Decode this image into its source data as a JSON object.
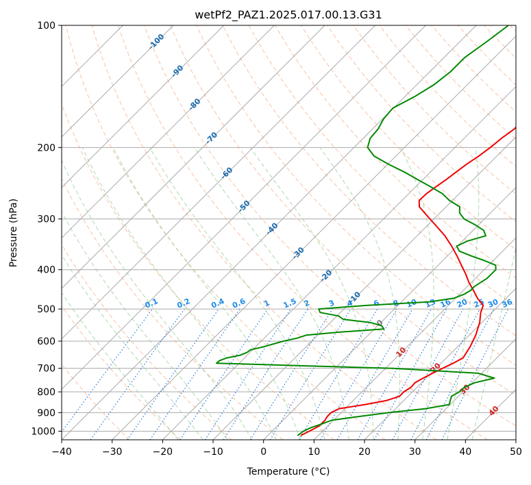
{
  "chart_data": {
    "type": "line",
    "title": "wetPf2_PAZ1.2025.017.00.13.G31",
    "xlabel": "Temperature (°C)",
    "ylabel": "Pressure (hPa)",
    "xlim": [
      -40,
      50
    ],
    "ylim": [
      1050,
      100
    ],
    "y_scale": "log",
    "skew": "45",
    "grid": true,
    "x_ticks": [
      -40,
      -30,
      -20,
      -10,
      0,
      10,
      20,
      30,
      40,
      50
    ],
    "x_tick_labels": [
      "−40",
      "−30",
      "−20",
      "−10",
      "0",
      "10",
      "20",
      "30",
      "40",
      "50"
    ],
    "y_ticks": [
      100,
      200,
      300,
      400,
      500,
      600,
      700,
      800,
      900,
      1000
    ],
    "y_tick_labels": [
      "100",
      "200",
      "300",
      "400",
      "500",
      "600",
      "700",
      "800",
      "900",
      "1000"
    ],
    "temperature": {
      "color": "#ee0000",
      "p": [
        1025,
        1000,
        970,
        940,
        920,
        900,
        880,
        860,
        840,
        820,
        800,
        780,
        760,
        740,
        720,
        700,
        680,
        660,
        620,
        580,
        540,
        510,
        490,
        470,
        450,
        430,
        410,
        390,
        370,
        350,
        330,
        310,
        295,
        280,
        270,
        260,
        250,
        240,
        230,
        220,
        210,
        200,
        190,
        180,
        170,
        160,
        150,
        140,
        130,
        125,
        120,
        115,
        110,
        105,
        100
      ],
      "t": [
        6.5,
        7.4,
        8.3,
        8.3,
        8.0,
        8.0,
        8.8,
        13.1,
        16.6,
        18.3,
        18.3,
        18.8,
        18.7,
        19.4,
        20.3,
        21.3,
        22.4,
        23.3,
        22.5,
        21.3,
        19.6,
        17.8,
        16.9,
        14.3,
        12.0,
        9.5,
        7.2,
        4.6,
        1.9,
        -1.1,
        -4.5,
        -8.6,
        -11.9,
        -15.3,
        -16.6,
        -16.5,
        -16.0,
        -15.4,
        -14.9,
        -14.4,
        -13.6,
        -13.0,
        -12.6,
        -11.9,
        -12.2,
        -12.5,
        -12.2,
        -15.5,
        -22.4,
        -24.2,
        -23.2,
        -20.0,
        -17.8,
        -17.3,
        -16.7
      ]
    },
    "dewpoint": {
      "color": "#008800",
      "p": [
        1025,
        1000,
        980,
        960,
        940,
        920,
        900,
        880,
        860,
        840,
        820,
        800,
        780,
        760,
        740,
        720,
        700,
        690,
        680,
        670,
        660,
        650,
        640,
        630,
        620,
        600,
        590,
        580,
        570,
        560,
        550,
        540,
        530,
        520,
        510,
        500,
        490,
        480,
        470,
        460,
        450,
        440,
        420,
        400,
        390,
        380,
        370,
        360,
        350,
        340,
        330,
        320,
        310,
        300,
        290,
        280,
        270,
        260,
        250,
        240,
        230,
        220,
        210,
        200,
        190,
        180,
        170,
        160,
        150,
        140,
        130,
        120,
        110,
        100
      ],
      "t": [
        5.9,
        6.2,
        7.0,
        8.4,
        9.6,
        14.3,
        19.5,
        25.9,
        29.8,
        29.2,
        28.6,
        29.3,
        29.4,
        30.5,
        33.5,
        29.4,
        11.6,
        -6.8,
        -24.5,
        -24.4,
        -23.5,
        -21.4,
        -20.6,
        -20.4,
        -18.5,
        -15.6,
        -13.5,
        -12.3,
        -6.2,
        1.9,
        0.8,
        -2.0,
        -8.1,
        -9.7,
        -14.0,
        -15.0,
        -6.3,
        5.6,
        9.7,
        10.9,
        11.4,
        11.4,
        12.3,
        12.3,
        11.4,
        8.3,
        4.7,
        1.4,
        -0.1,
        1.0,
        3.6,
        2.1,
        -0.7,
        -4.0,
        -6.1,
        -7.3,
        -10.6,
        -13.3,
        -17.0,
        -21.0,
        -25.1,
        -29.8,
        -34.3,
        -37.3,
        -38.6,
        -38.9,
        -39.8,
        -40.1,
        -38.1,
        -36.6,
        -35.9,
        -35.9,
        -34.7,
        -33.6
      ]
    },
    "isotherms": [
      -110,
      -100,
      -90,
      -80,
      -70,
      -60,
      -50,
      -40,
      -30,
      -20,
      -10,
      0,
      10,
      20,
      30,
      40,
      50
    ],
    "dry_adiabats_c": [
      -30,
      -20,
      -10,
      0,
      10,
      20,
      30,
      40,
      50,
      60,
      70,
      80,
      90,
      100,
      110,
      120,
      130,
      140,
      150,
      160,
      170,
      180,
      190,
      200
    ],
    "moist_adiabats_c": [
      -20,
      -15,
      -10,
      -5,
      0,
      5,
      10,
      15,
      20,
      25,
      30,
      35,
      40
    ],
    "mixing_ratio_lines": [
      0.1,
      0.2,
      0.4,
      0.6,
      1,
      1.5,
      2,
      3,
      4,
      6,
      8,
      10,
      13,
      16,
      20,
      25,
      30,
      36
    ],
    "mixing_ratio_labels": [
      "0.1",
      "0.2",
      "0.4",
      "0.6",
      "1",
      "1.5",
      "2",
      "3",
      "4",
      "6",
      "8",
      "10",
      "13",
      "16",
      "20",
      "25",
      "30",
      "36"
    ],
    "isotherm_labels": [
      {
        "text": "-100",
        "t": -100,
        "p": 110
      },
      {
        "text": "-90",
        "t": -90,
        "p": 130
      },
      {
        "text": "-80",
        "t": -80,
        "p": 157
      },
      {
        "text": "-70",
        "t": -70,
        "p": 190
      },
      {
        "text": "-60",
        "t": -60,
        "p": 232
      },
      {
        "text": "-50",
        "t": -50,
        "p": 280
      },
      {
        "text": "-40",
        "t": -40,
        "p": 318
      },
      {
        "text": "-30",
        "t": -30,
        "p": 365
      },
      {
        "text": "-20",
        "t": -20,
        "p": 415
      },
      {
        "text": "-10",
        "t": -10,
        "p": 470
      },
      {
        "text": "0",
        "t": 0,
        "p": 542
      },
      {
        "text": "10",
        "t": 10,
        "p": 640
      },
      {
        "text": "20",
        "t": 20,
        "p": 700
      },
      {
        "text": "30",
        "t": 30,
        "p": 790
      },
      {
        "text": "40",
        "t": 40,
        "p": 893
      }
    ],
    "colors": {
      "isotherm": "#aaaaaa",
      "pressure_grid": "#aaaaaa",
      "dry_adiabat": "#f2a070",
      "moist_adiabat": "#88c988",
      "mixing_ratio": "#1e78e0",
      "isotherm_label_cold": "#1a6aae",
      "isotherm_label_zero": "#777777",
      "isotherm_label_warm": "#cc2222",
      "mixing_ratio_label": "#1e8be8"
    }
  }
}
